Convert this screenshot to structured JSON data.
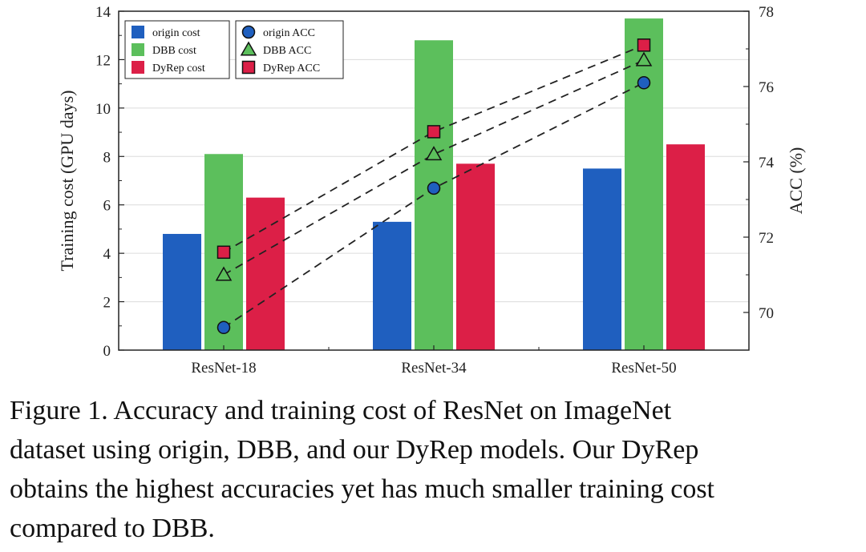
{
  "chart_data": {
    "type": "bar+line",
    "categories": [
      "ResNet-18",
      "ResNet-34",
      "ResNet-50"
    ],
    "bar_series": [
      {
        "name": "origin cost",
        "values": [
          4.8,
          5.3,
          7.5
        ],
        "color": "#1f5fbf"
      },
      {
        "name": "DBB cost",
        "values": [
          8.1,
          12.8,
          13.7
        ],
        "color": "#5cbf5c"
      },
      {
        "name": "DyRep cost",
        "values": [
          6.3,
          7.7,
          8.5
        ],
        "color": "#dc1f47"
      }
    ],
    "line_series": [
      {
        "name": "origin ACC",
        "values": [
          69.6,
          73.3,
          76.1
        ],
        "marker": "circle",
        "color": "#1f5fbf"
      },
      {
        "name": "DBB ACC",
        "values": [
          71.0,
          74.2,
          76.7
        ],
        "marker": "triangle",
        "color": "#5cbf5c"
      },
      {
        "name": "DyRep ACC",
        "values": [
          71.6,
          74.8,
          77.1
        ],
        "marker": "square",
        "color": "#dc1f47"
      }
    ],
    "ylabel": "Training cost (GPU days)",
    "y2label": "ACC (%)",
    "ylim": [
      0,
      14
    ],
    "y2lim": [
      69.0,
      78.0
    ],
    "yticks": [
      0,
      2,
      4,
      6,
      8,
      10,
      12,
      14
    ],
    "y2ticks": [
      70,
      72,
      74,
      76,
      78
    ],
    "grid": true,
    "legend": "top-left"
  },
  "caption": {
    "lines": [
      "Figure 1.  Accuracy and training cost of ResNet on ImageNet",
      "dataset using origin, DBB, and our DyRep models.  Our DyRep",
      "obtains the highest accuracies yet has much smaller training cost",
      "compared to DBB."
    ]
  }
}
